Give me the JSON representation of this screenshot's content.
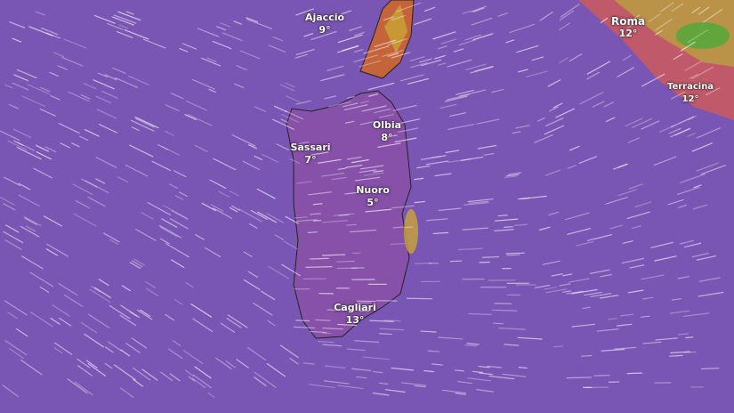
{
  "layer": "wind",
  "colors": {
    "base": "#7a56b4",
    "teal": "#3e8f98",
    "magenta": "#c2408e",
    "yellow": "#c9a536",
    "green": "#4caa3a"
  },
  "cities": [
    {
      "name": "Ajaccio",
      "temp": "9°"
    },
    {
      "name": "Roma",
      "temp": "12°"
    },
    {
      "name": "Terracina",
      "temp": "12°"
    },
    {
      "name": "Olbia",
      "temp": "8°"
    },
    {
      "name": "Sassari",
      "temp": "7°"
    },
    {
      "name": "Nuoro",
      "temp": "5°"
    },
    {
      "name": "Cagliari",
      "temp": "13°"
    }
  ]
}
